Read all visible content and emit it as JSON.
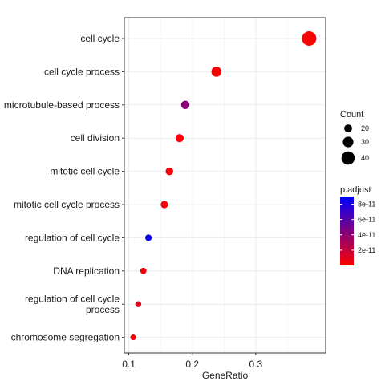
{
  "chart_data": {
    "type": "scatter",
    "xlabel": "GeneRatio",
    "x_ticks": [
      0.1,
      0.2,
      0.3
    ],
    "x_tick_labels": [
      "0.1",
      "0.2",
      "0.3"
    ],
    "xlim": [
      0.093,
      0.41
    ],
    "categories": [
      "cell cycle",
      "cell cycle process",
      "microtubule-based process",
      "cell division",
      "mitotic cell cycle",
      "mitotic cell cycle process",
      "regulation of cell cycle",
      "DNA replication",
      "regulation of cell cycle\nprocess",
      "chromosome segregation"
    ],
    "points": [
      {
        "term": "cell cycle",
        "gene_ratio": 0.384,
        "count": 44,
        "p_adjust": 1e-12
      },
      {
        "term": "cell cycle process",
        "gene_ratio": 0.238,
        "count": 28,
        "p_adjust": 2e-12
      },
      {
        "term": "microtubule-based process",
        "gene_ratio": 0.189,
        "count": 22,
        "p_adjust": 4.2e-11
      },
      {
        "term": "cell division",
        "gene_ratio": 0.18,
        "count": 21,
        "p_adjust": 1e-12
      },
      {
        "term": "mitotic cell cycle",
        "gene_ratio": 0.164,
        "count": 19,
        "p_adjust": 2e-12
      },
      {
        "term": "mitotic cell cycle process",
        "gene_ratio": 0.156,
        "count": 18,
        "p_adjust": 3e-12
      },
      {
        "term": "regulation of cell cycle",
        "gene_ratio": 0.131,
        "count": 15,
        "p_adjust": 8.5e-11
      },
      {
        "term": "DNA replication",
        "gene_ratio": 0.123,
        "count": 14,
        "p_adjust": 5e-12
      },
      {
        "term": "regulation of cell cycle\nprocess",
        "gene_ratio": 0.115,
        "count": 13,
        "p_adjust": 1e-11
      },
      {
        "term": "chromosome segregation",
        "gene_ratio": 0.107,
        "count": 12,
        "p_adjust": 2e-12
      }
    ],
    "size_legend": {
      "title": "Count",
      "values": [
        20,
        30,
        40
      ],
      "labels": [
        "20",
        "30",
        "40"
      ]
    },
    "color_legend": {
      "title": "p.adjust",
      "min": 0,
      "max": 9e-11,
      "tick_values": [
        2e-11,
        4e-11,
        6e-11,
        8e-11
      ],
      "tick_labels": [
        "2e-11",
        "4e-11",
        "6e-11",
        "8e-11"
      ],
      "low_color": "#ff0000",
      "high_color": "#0000ff"
    },
    "grid": true,
    "legend_position": "right"
  }
}
